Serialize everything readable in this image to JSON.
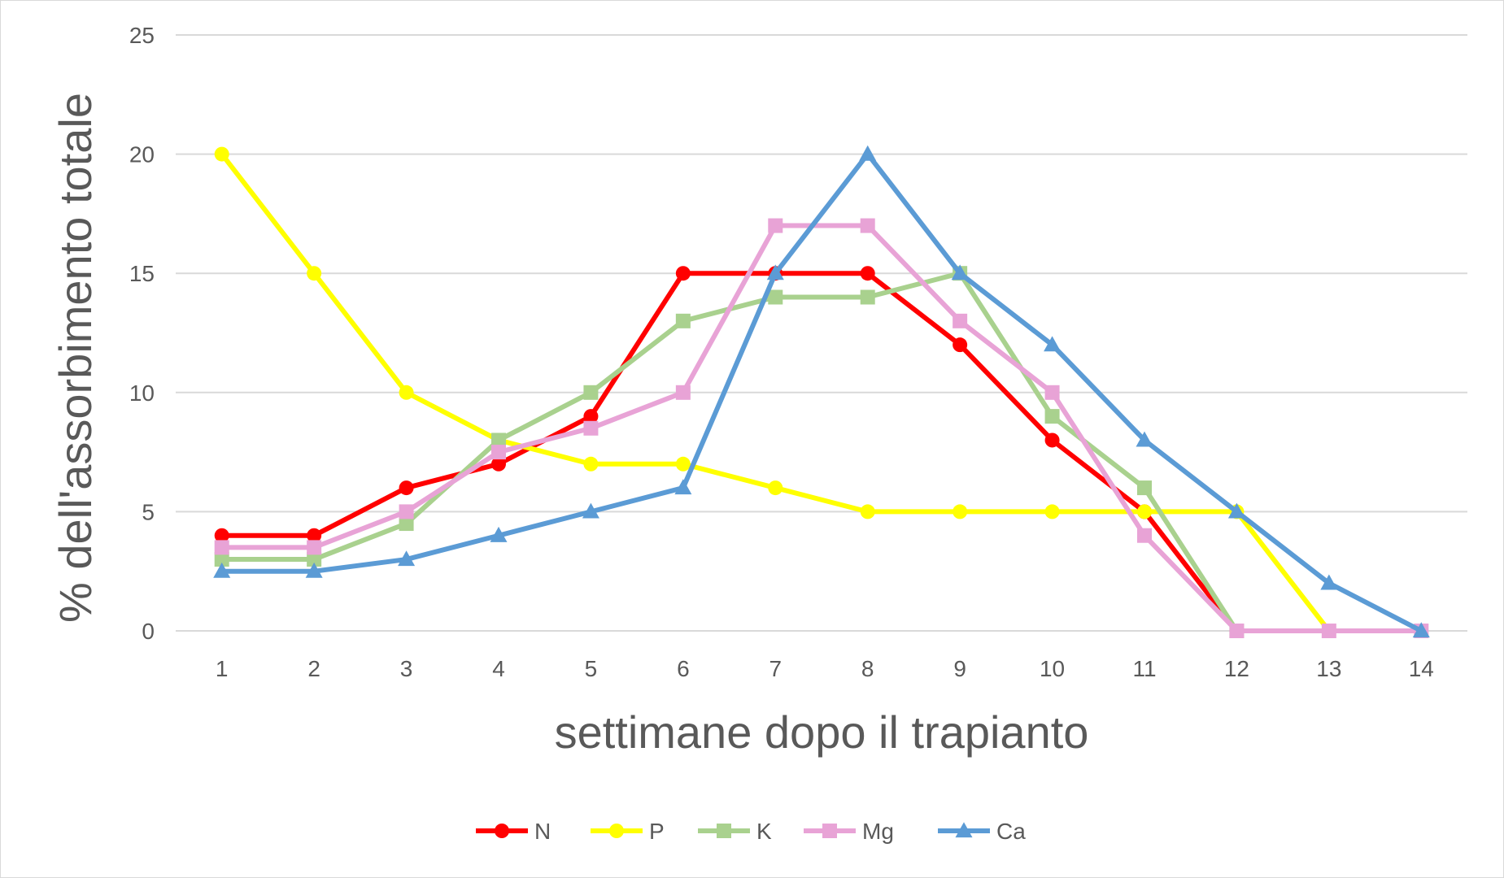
{
  "chart_data": {
    "type": "line",
    "title": "",
    "xlabel": "settimane dopo il trapianto",
    "ylabel": "% dell'assorbimento totale",
    "x": [
      1,
      2,
      3,
      4,
      5,
      6,
      7,
      8,
      9,
      10,
      11,
      12,
      13,
      14
    ],
    "ylim": [
      0,
      25
    ],
    "yticks": [
      0,
      5,
      10,
      15,
      20,
      25
    ],
    "grid": true,
    "legend_position": "bottom",
    "series": [
      {
        "name": "N",
        "color": "#ff0000",
        "marker": "circle",
        "values": [
          4,
          4,
          6,
          7,
          9,
          15,
          15,
          15,
          12,
          8,
          5,
          0,
          null,
          null
        ]
      },
      {
        "name": "P",
        "color": "#ffff00",
        "marker": "circle",
        "values": [
          20,
          15,
          10,
          8,
          7,
          7,
          6,
          5,
          5,
          5,
          5,
          5,
          0,
          null
        ]
      },
      {
        "name": "K",
        "color": "#a9d18e",
        "marker": "square",
        "values": [
          3,
          3,
          4.5,
          8,
          10,
          13,
          14,
          14,
          15,
          9,
          6,
          0,
          null,
          null
        ]
      },
      {
        "name": "Mg",
        "color": "#e8a3d6",
        "marker": "square",
        "values": [
          3.5,
          3.5,
          5,
          7.5,
          8.5,
          10,
          17,
          17,
          13,
          10,
          4,
          0,
          0,
          0
        ]
      },
      {
        "name": "Ca",
        "color": "#5b9bd5",
        "marker": "triangle",
        "values": [
          2.5,
          2.5,
          3,
          4,
          5,
          6,
          15,
          20,
          15,
          12,
          8,
          5,
          2,
          0
        ]
      }
    ]
  }
}
